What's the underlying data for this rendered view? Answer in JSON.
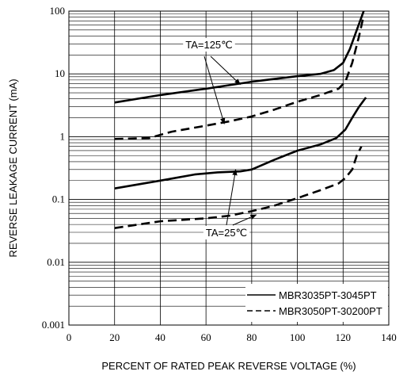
{
  "chart_data": {
    "type": "line",
    "xlabel": "PERCENT OF RATED PEAK REVERSE VOLTAGE (%)",
    "ylabel": "REVERSE LEAKAGE CURRENT (mA)",
    "xlim": [
      0,
      140
    ],
    "ylim": [
      0.001,
      100
    ],
    "y_scale": "log",
    "grid": true,
    "x_ticks": [
      "0",
      "20",
      "40",
      "60",
      "80",
      "100",
      "120",
      "140"
    ],
    "y_ticks": [
      {
        "value": 100,
        "label": "100"
      },
      {
        "value": 10,
        "label": "10"
      },
      {
        "value": 1,
        "label": "1"
      },
      {
        "value": 0.1,
        "label": "0.1"
      },
      {
        "value": 0.01,
        "label": "0.01"
      },
      {
        "value": 0.001,
        "label": "0.001"
      }
    ],
    "legend_position": "bottom-right",
    "legend": [
      {
        "label": "MBR3035PT-3045PT",
        "style": "solid"
      },
      {
        "label": "MBR3050PT-30200PT",
        "style": "dashed"
      }
    ],
    "series": [
      {
        "legend_index": 0,
        "condition": "TA=125℃",
        "style": "solid",
        "points": [
          [
            20,
            3.5
          ],
          [
            40,
            4.6
          ],
          [
            60,
            5.8
          ],
          [
            70,
            6.6
          ],
          [
            80,
            7.5
          ],
          [
            90,
            8.3
          ],
          [
            100,
            9.2
          ],
          [
            110,
            10
          ],
          [
            116,
            11.5
          ],
          [
            120,
            15
          ],
          [
            123,
            25
          ],
          [
            126,
            50
          ],
          [
            129,
            100
          ]
        ]
      },
      {
        "legend_index": 1,
        "condition": "TA=125℃",
        "style": "dashed",
        "points": [
          [
            20,
            0.92
          ],
          [
            35,
            0.95
          ],
          [
            45,
            1.2
          ],
          [
            60,
            1.5
          ],
          [
            70,
            1.75
          ],
          [
            80,
            2.1
          ],
          [
            90,
            2.7
          ],
          [
            100,
            3.6
          ],
          [
            110,
            4.6
          ],
          [
            118,
            5.8
          ],
          [
            121,
            7.5
          ],
          [
            124,
            15
          ],
          [
            127,
            40
          ],
          [
            129,
            85
          ]
        ]
      },
      {
        "legend_index": 0,
        "condition": "TA=25℃",
        "style": "solid",
        "points": [
          [
            20,
            0.15
          ],
          [
            40,
            0.2
          ],
          [
            55,
            0.25
          ],
          [
            65,
            0.27
          ],
          [
            75,
            0.28
          ],
          [
            80,
            0.3
          ],
          [
            90,
            0.43
          ],
          [
            100,
            0.6
          ],
          [
            110,
            0.75
          ],
          [
            117,
            0.95
          ],
          [
            121,
            1.3
          ],
          [
            124,
            2.0
          ],
          [
            127,
            3.0
          ],
          [
            130,
            4.2
          ]
        ]
      },
      {
        "legend_index": 1,
        "condition": "TA=25℃",
        "style": "dashed",
        "points": [
          [
            20,
            0.035
          ],
          [
            40,
            0.045
          ],
          [
            60,
            0.05
          ],
          [
            70,
            0.055
          ],
          [
            80,
            0.065
          ],
          [
            90,
            0.08
          ],
          [
            100,
            0.105
          ],
          [
            110,
            0.14
          ],
          [
            118,
            0.18
          ],
          [
            121,
            0.22
          ],
          [
            124,
            0.3
          ],
          [
            126,
            0.5
          ],
          [
            128,
            0.7
          ]
        ]
      }
    ],
    "annotations": [
      {
        "text": "TA=125℃",
        "arrows_to": [
          [
            75,
            6.8
          ],
          [
            68,
            1.6
          ]
        ]
      },
      {
        "text": "TA=25℃",
        "arrows_to": [
          [
            73,
            0.3
          ],
          [
            82,
            0.057
          ]
        ]
      }
    ]
  }
}
